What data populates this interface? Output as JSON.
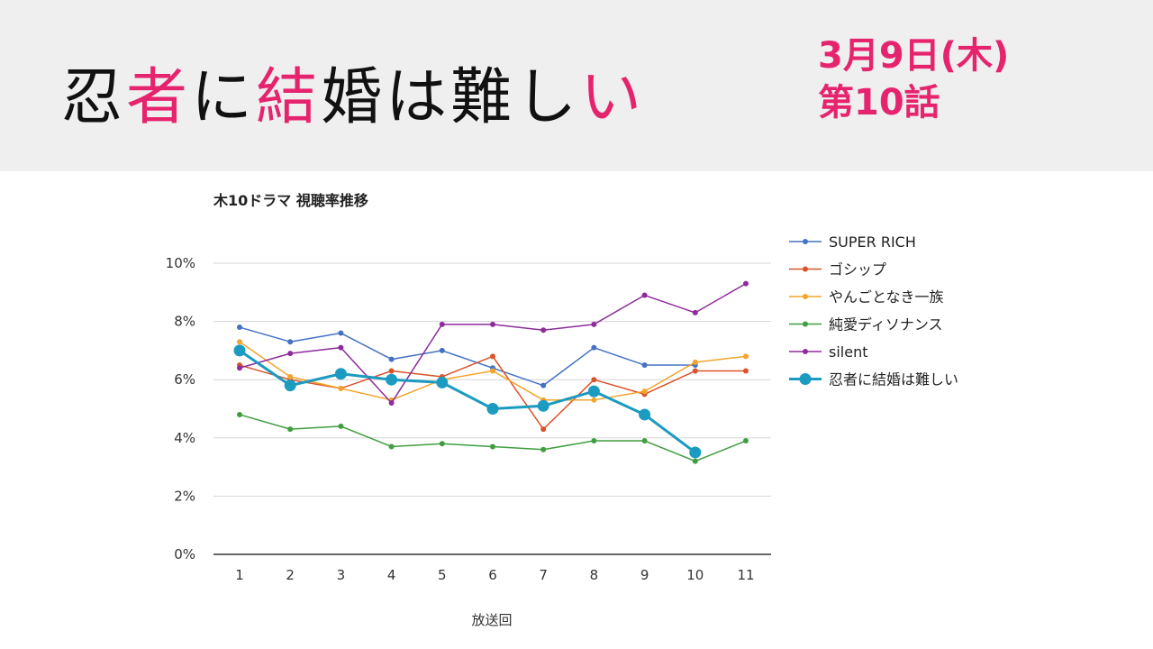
{
  "header": {
    "title_parts": [
      {
        "text": "忍",
        "accent": false
      },
      {
        "text": "者",
        "accent": true
      },
      {
        "text": "に",
        "accent": false
      },
      {
        "text": "結",
        "accent": true
      },
      {
        "text": "婚は難し",
        "accent": false
      },
      {
        "text": "い",
        "accent": true
      }
    ],
    "date": "3月9日(木)",
    "episode": "第10話",
    "accent_color": "#e6246e",
    "background": "#efefef"
  },
  "chart_data": {
    "type": "line",
    "title": "木10ドラマ 視聴率推移",
    "xlabel": "放送回",
    "ylabel": "",
    "categories": [
      "1",
      "2",
      "3",
      "4",
      "5",
      "6",
      "7",
      "8",
      "9",
      "10",
      "11"
    ],
    "ylim": [
      0,
      10
    ],
    "yticks": [
      "0%",
      "2%",
      "4%",
      "6%",
      "8%",
      "10%"
    ],
    "grid": true,
    "legend_position": "right",
    "series": [
      {
        "name": "SUPER RICH",
        "color": "#4472c4",
        "highlight": false,
        "values": [
          7.8,
          7.3,
          7.6,
          6.7,
          7.0,
          6.4,
          5.8,
          7.1,
          6.5,
          6.5,
          null
        ]
      },
      {
        "name": "ゴシップ",
        "color": "#d9532b",
        "highlight": false,
        "values": [
          6.5,
          6.0,
          5.7,
          6.3,
          6.1,
          6.8,
          4.3,
          6.0,
          5.5,
          6.3,
          6.3
        ]
      },
      {
        "name": "やんごとなき一族",
        "color": "#f2a52a",
        "highlight": false,
        "values": [
          7.3,
          6.1,
          5.7,
          5.3,
          6.0,
          6.3,
          5.3,
          5.3,
          5.6,
          6.6,
          6.8
        ]
      },
      {
        "name": "純愛ディソナンス",
        "color": "#3f9e3f",
        "highlight": false,
        "values": [
          4.8,
          4.3,
          4.4,
          3.7,
          3.8,
          3.7,
          3.6,
          3.9,
          3.9,
          3.2,
          3.9
        ]
      },
      {
        "name": "silent",
        "color": "#8e2c9c",
        "highlight": false,
        "values": [
          6.4,
          6.9,
          7.1,
          5.2,
          7.9,
          7.9,
          7.7,
          7.9,
          8.9,
          8.3,
          9.3
        ]
      },
      {
        "name": "忍者に結婚は難しい",
        "color": "#1b9bc0",
        "highlight": true,
        "values": [
          7.0,
          5.8,
          6.2,
          6.0,
          5.9,
          5.0,
          5.1,
          5.6,
          4.8,
          3.5,
          null
        ]
      }
    ]
  }
}
